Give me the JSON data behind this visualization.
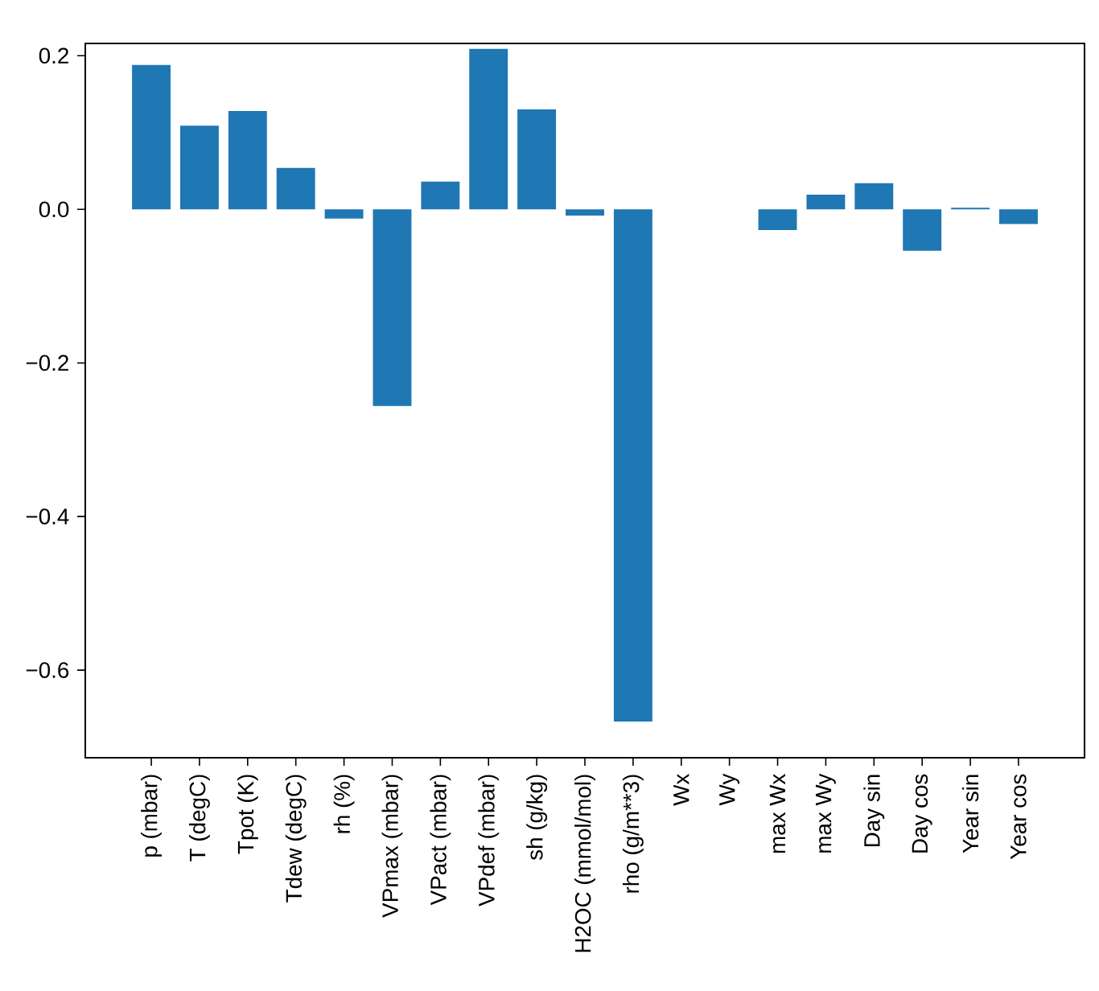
{
  "chart_data": {
    "type": "bar",
    "categories": [
      "p (mbar)",
      "T (degC)",
      "Tpot (K)",
      "Tdew (degC)",
      "rh (%)",
      "VPmax (mbar)",
      "VPact (mbar)",
      "VPdef (mbar)",
      "sh (g/kg)",
      "H2OC (mmol/mol)",
      "rho (g/m**3)",
      "Wx",
      "Wy",
      "max Wx",
      "max Wy",
      "Day sin",
      "Day cos",
      "Year sin",
      "Year cos"
    ],
    "values": [
      0.188,
      0.109,
      0.128,
      0.054,
      -0.012,
      -0.256,
      0.036,
      0.209,
      0.13,
      -0.008,
      -0.667,
      0,
      0,
      -0.027,
      0.019,
      0.034,
      -0.054,
      0.002,
      -0.019
    ],
    "color": "#1f77b4",
    "ylim": [
      -0.714,
      0.216
    ],
    "yticks": [
      {
        "value": -0.6,
        "label": "−0.6"
      },
      {
        "value": -0.4,
        "label": "−0.4"
      },
      {
        "value": -0.2,
        "label": "−0.2"
      },
      {
        "value": 0.0,
        "label": "0.0"
      },
      {
        "value": 0.2,
        "label": "0.2"
      }
    ],
    "grid": false
  }
}
